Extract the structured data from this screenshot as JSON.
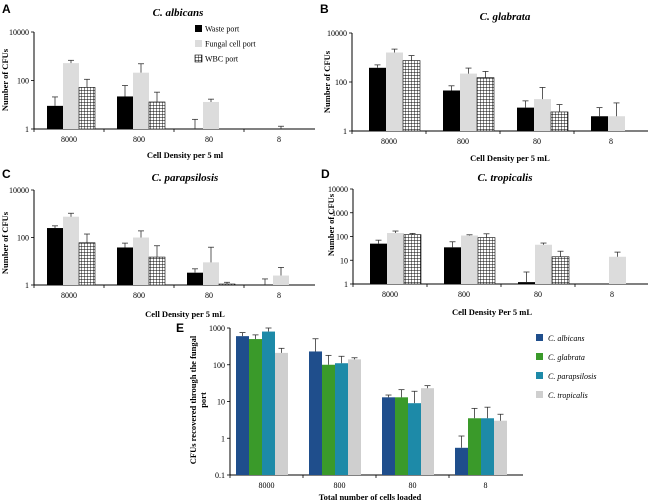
{
  "panels_sub": [
    {
      "label": "A",
      "title": "C. albicans",
      "xlabel": "Cell Density per 5 ml",
      "ylabel": "Number of CFUs",
      "legend": [
        "Waste port",
        "Fungal cell port",
        "WBC port"
      ]
    },
    {
      "label": "B",
      "title": "C. glabrata",
      "xlabel": "Cell Density per 5 mL",
      "ylabel": "Number of CFUs"
    },
    {
      "label": "C",
      "title": "C. parapsilosis",
      "xlabel": "Cell Density per 5 mL",
      "ylabel": "Number of CFUs"
    },
    {
      "label": "D",
      "title": "C. tropicalis",
      "xlabel": "Cell Density Per 5 mL",
      "ylabel": "Number of CFUs"
    }
  ],
  "panel_e": {
    "label": "E",
    "xlabel": "Total number of cells loaded",
    "ylabel_line1": "CFUs recovered through the   fungal",
    "ylabel_line2": "port"
  },
  "colors": {
    "waste": "#000000",
    "fungal": "#dcdcdc",
    "wbc_fill": "#ffffff",
    "wbc_grid": "#000000",
    "albicans": "#1f4e8c",
    "glabrata": "#3a9a2a",
    "parapsilosis": "#1d8aa8",
    "tropicalis": "#cfcfcf"
  },
  "chart_data": [
    {
      "type": "bar",
      "panel": "A",
      "title": "C. albicans",
      "xlabel": "Cell Density per 5 ml",
      "ylabel": "Number of CFUs",
      "scale": "log",
      "ylim": [
        1,
        10000
      ],
      "yticks": [
        "1",
        "100",
        "10000"
      ],
      "categories": [
        "8000",
        "800",
        "80",
        "8"
      ],
      "series": [
        {
          "name": "Waste port",
          "values": [
            9,
            22,
            1,
            0
          ],
          "errors": [
            12,
            40,
            1.5,
            0
          ]
        },
        {
          "name": "Fungal cell port",
          "values": [
            520,
            210,
            13,
            1
          ],
          "errors": [
            160,
            280,
            4,
            0.3
          ]
        },
        {
          "name": "WBC port",
          "values": [
            52,
            13,
            1,
            1
          ],
          "errors": [
            60,
            20,
            0,
            0
          ]
        }
      ]
    },
    {
      "type": "bar",
      "panel": "B",
      "title": "C. glabrata",
      "xlabel": "Cell Density per 5 mL",
      "ylabel": "Number of CFUs",
      "scale": "log",
      "ylim": [
        1,
        10000
      ],
      "yticks": [
        "1",
        "100",
        "10000"
      ],
      "categories": [
        "8000",
        "800",
        "80",
        "8"
      ],
      "series": [
        {
          "name": "Waste port",
          "values": [
            380,
            45,
            9,
            4
          ],
          "errors": [
            120,
            25,
            8,
            5
          ]
        },
        {
          "name": "Fungal cell port",
          "values": [
            1600,
            220,
            20,
            4
          ],
          "errors": [
            600,
            150,
            40,
            10
          ]
        },
        {
          "name": "WBC port",
          "values": [
            750,
            150,
            6,
            0
          ],
          "errors": [
            450,
            120,
            6,
            0
          ]
        }
      ]
    },
    {
      "type": "bar",
      "panel": "C",
      "title": "C. parapsilosis",
      "xlabel": "Cell Density per 5 mL",
      "ylabel": "Number of CFUs",
      "scale": "log",
      "ylim": [
        1,
        10000
      ],
      "yticks": [
        "1",
        "100",
        "10000"
      ],
      "categories": [
        "8000",
        "800",
        "80",
        "8"
      ],
      "series": [
        {
          "name": "Waste port",
          "values": [
            250,
            38,
            3.3,
            1
          ],
          "errors": [
            60,
            20,
            1.5,
            0.8
          ]
        },
        {
          "name": "Fungal cell port",
          "values": [
            750,
            100,
            9,
            2.5
          ],
          "errors": [
            300,
            90,
            30,
            3
          ]
        },
        {
          "name": "WBC port",
          "values": [
            60,
            15,
            1.1,
            0
          ],
          "errors": [
            80,
            30,
            0.2,
            0
          ]
        }
      ]
    },
    {
      "type": "bar",
      "panel": "D",
      "title": "C. tropicalis",
      "xlabel": "Cell Density Per 5 mL",
      "ylabel": "Number of CFUs",
      "scale": "log",
      "ylim": [
        1,
        10000
      ],
      "yticks": [
        "1",
        "10",
        "100",
        "1000",
        "10000"
      ],
      "categories": [
        "8000",
        "800",
        "80",
        "8"
      ],
      "series": [
        {
          "name": "Waste port",
          "values": [
            50,
            35,
            1.2,
            1
          ],
          "errors": [
            20,
            25,
            2,
            0
          ]
        },
        {
          "name": "Fungal cell port",
          "values": [
            140,
            110,
            45,
            14
          ],
          "errors": [
            30,
            8,
            8,
            8
          ]
        },
        {
          "name": "WBC port",
          "values": [
            120,
            90,
            14,
            1
          ],
          "errors": [
            15,
            40,
            10,
            0
          ]
        }
      ]
    },
    {
      "type": "bar",
      "panel": "E",
      "xlabel": "Total number of cells loaded",
      "ylabel": "CFUs recovered through the fungal port",
      "scale": "log",
      "ylim": [
        0.1,
        1000
      ],
      "yticks": [
        "0.1",
        "1",
        "10",
        "100",
        "1000"
      ],
      "categories": [
        "8000",
        "800",
        "80",
        "8"
      ],
      "series": [
        {
          "name": "C. albicans",
          "values": [
            600,
            230,
            13,
            0.55
          ],
          "errors": [
            150,
            280,
            2,
            0.6
          ]
        },
        {
          "name": "C. glabrata",
          "values": [
            500,
            100,
            13,
            3.5
          ],
          "errors": [
            150,
            80,
            8,
            3
          ]
        },
        {
          "name": "C. parapsilosis",
          "values": [
            800,
            110,
            9,
            3.5
          ],
          "errors": [
            200,
            60,
            10,
            3.5
          ]
        },
        {
          "name": "C. tropicalis",
          "values": [
            210,
            140,
            23,
            3
          ],
          "errors": [
            70,
            15,
            4,
            1.5
          ]
        }
      ]
    }
  ]
}
